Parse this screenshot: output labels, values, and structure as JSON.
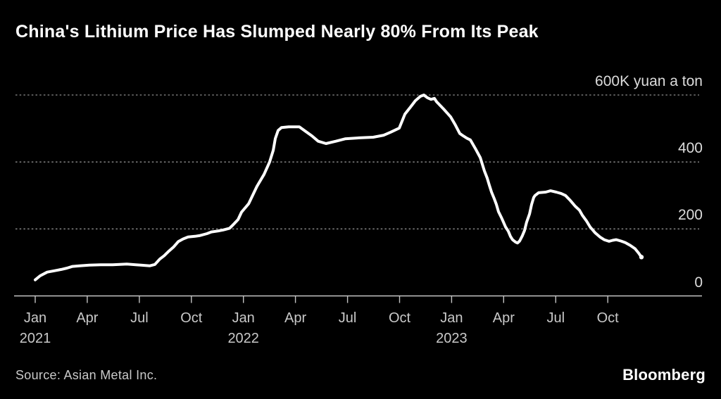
{
  "page": {
    "background": "#000000"
  },
  "header": {
    "title": "China's Lithium Price Has Slumped Nearly 80% From Its Peak"
  },
  "footer": {
    "source": "Source: Asian Metal Inc.",
    "brand": "Bloomberg"
  },
  "chart_data": {
    "type": "line",
    "title": "China's Lithium Price Has Slumped Nearly 80% From Its Peak",
    "series_name": "China lithium price",
    "unit": "thousand yuan a ton",
    "legend_position": "none",
    "grid": "dotted horizontal",
    "colors": {
      "background": "#000000",
      "line": "#ffffff",
      "gridline": "#8f8f8f",
      "axis": "#c4c4c4",
      "tick_label": "#c9c9c9",
      "y_label": "#dcdcdc",
      "title": "#ffffff"
    },
    "y_axis": {
      "range": [
        0,
        600
      ],
      "gridline_values": [
        600,
        400,
        200
      ],
      "labels": [
        {
          "value": 600,
          "text": "600K yuan a ton"
        },
        {
          "value": 400,
          "text": "400"
        },
        {
          "value": 200,
          "text": "200"
        },
        {
          "value": 0,
          "text": "0"
        }
      ]
    },
    "x_axis": {
      "start": "Jan 2021",
      "end": "Dec 2023",
      "months_per_tick": 3,
      "tick_months": [
        "Jan",
        "Apr",
        "Jul",
        "Oct",
        "Jan",
        "Apr",
        "Jul",
        "Oct",
        "Jan",
        "Apr",
        "Jul",
        "Oct"
      ],
      "year_labels": [
        {
          "tick_index": 0,
          "text": "2021"
        },
        {
          "tick_index": 4,
          "text": "2022"
        },
        {
          "tick_index": 8,
          "text": "2023"
        }
      ]
    },
    "points_format": "[months_since_jan_2021, price_in_thousand_yuan_per_ton]",
    "points": [
      [
        0,
        48
      ],
      [
        0.28,
        60
      ],
      [
        0.69,
        71
      ],
      [
        1.1,
        75
      ],
      [
        1.5,
        79
      ],
      [
        1.83,
        83
      ],
      [
        2.15,
        88
      ],
      [
        2.56,
        90
      ],
      [
        3.12,
        92
      ],
      [
        3.77,
        93
      ],
      [
        4.46,
        93
      ],
      [
        5.28,
        95
      ],
      [
        5.8,
        93
      ],
      [
        6.09,
        92
      ],
      [
        6.61,
        90
      ],
      [
        6.9,
        94
      ],
      [
        7.18,
        110
      ],
      [
        7.43,
        120
      ],
      [
        7.71,
        134
      ],
      [
        7.99,
        147
      ],
      [
        8.24,
        162
      ],
      [
        8.52,
        170
      ],
      [
        8.81,
        176
      ],
      [
        9.21,
        178
      ],
      [
        9.46,
        180
      ],
      [
        9.9,
        186
      ],
      [
        10.15,
        191
      ],
      [
        10.55,
        194
      ],
      [
        10.83,
        197
      ],
      [
        11.2,
        202
      ],
      [
        11.36,
        210
      ],
      [
        11.69,
        228
      ],
      [
        11.89,
        250
      ],
      [
        12.3,
        275
      ],
      [
        12.78,
        327
      ],
      [
        13.19,
        363
      ],
      [
        13.51,
        400
      ],
      [
        13.72,
        435
      ],
      [
        13.84,
        470
      ],
      [
        14,
        494
      ],
      [
        14.2,
        503
      ],
      [
        14.61,
        505
      ],
      [
        15.22,
        505
      ],
      [
        15.54,
        493
      ],
      [
        15.95,
        478
      ],
      [
        16.31,
        462
      ],
      [
        16.76,
        455
      ],
      [
        17.33,
        462
      ],
      [
        17.86,
        469
      ],
      [
        18.67,
        472
      ],
      [
        19.48,
        474
      ],
      [
        20.09,
        480
      ],
      [
        20.49,
        489
      ],
      [
        20.98,
        501
      ],
      [
        21.31,
        543
      ],
      [
        21.63,
        564
      ],
      [
        21.91,
        583
      ],
      [
        22.2,
        596
      ],
      [
        22.4,
        600
      ],
      [
        22.6,
        592
      ],
      [
        22.81,
        587
      ],
      [
        23.01,
        590
      ],
      [
        23.13,
        580
      ],
      [
        23.54,
        558
      ],
      [
        23.94,
        535
      ],
      [
        24.22,
        510
      ],
      [
        24.47,
        485
      ],
      [
        24.67,
        478
      ],
      [
        24.88,
        471
      ],
      [
        25.08,
        466
      ],
      [
        25.36,
        441
      ],
      [
        25.65,
        413
      ],
      [
        25.89,
        373
      ],
      [
        26.05,
        352
      ],
      [
        26.17,
        331
      ],
      [
        26.3,
        310
      ],
      [
        26.46,
        290
      ],
      [
        26.58,
        273
      ],
      [
        26.7,
        252
      ],
      [
        26.86,
        235
      ],
      [
        26.99,
        220
      ],
      [
        27.11,
        206
      ],
      [
        27.27,
        193
      ],
      [
        27.39,
        178
      ],
      [
        27.51,
        168
      ],
      [
        27.68,
        161
      ],
      [
        27.8,
        158
      ],
      [
        27.92,
        164
      ],
      [
        28.08,
        180
      ],
      [
        28.2,
        195
      ],
      [
        28.32,
        220
      ],
      [
        28.49,
        245
      ],
      [
        28.61,
        273
      ],
      [
        28.73,
        294
      ],
      [
        28.81,
        300
      ],
      [
        29.01,
        308
      ],
      [
        29.42,
        310
      ],
      [
        29.7,
        314
      ],
      [
        30.03,
        310
      ],
      [
        30.31,
        306
      ],
      [
        30.56,
        300
      ],
      [
        30.84,
        285
      ],
      [
        31.12,
        268
      ],
      [
        31.37,
        256
      ],
      [
        31.53,
        241
      ],
      [
        31.77,
        224
      ],
      [
        31.98,
        206
      ],
      [
        32.26,
        189
      ],
      [
        32.55,
        176
      ],
      [
        32.79,
        168
      ],
      [
        33.07,
        163
      ],
      [
        33.28,
        166
      ],
      [
        33.48,
        168
      ],
      [
        33.76,
        164
      ],
      [
        34.01,
        159
      ],
      [
        34.29,
        151
      ],
      [
        34.57,
        141
      ],
      [
        34.78,
        128
      ],
      [
        34.94,
        116
      ]
    ]
  }
}
